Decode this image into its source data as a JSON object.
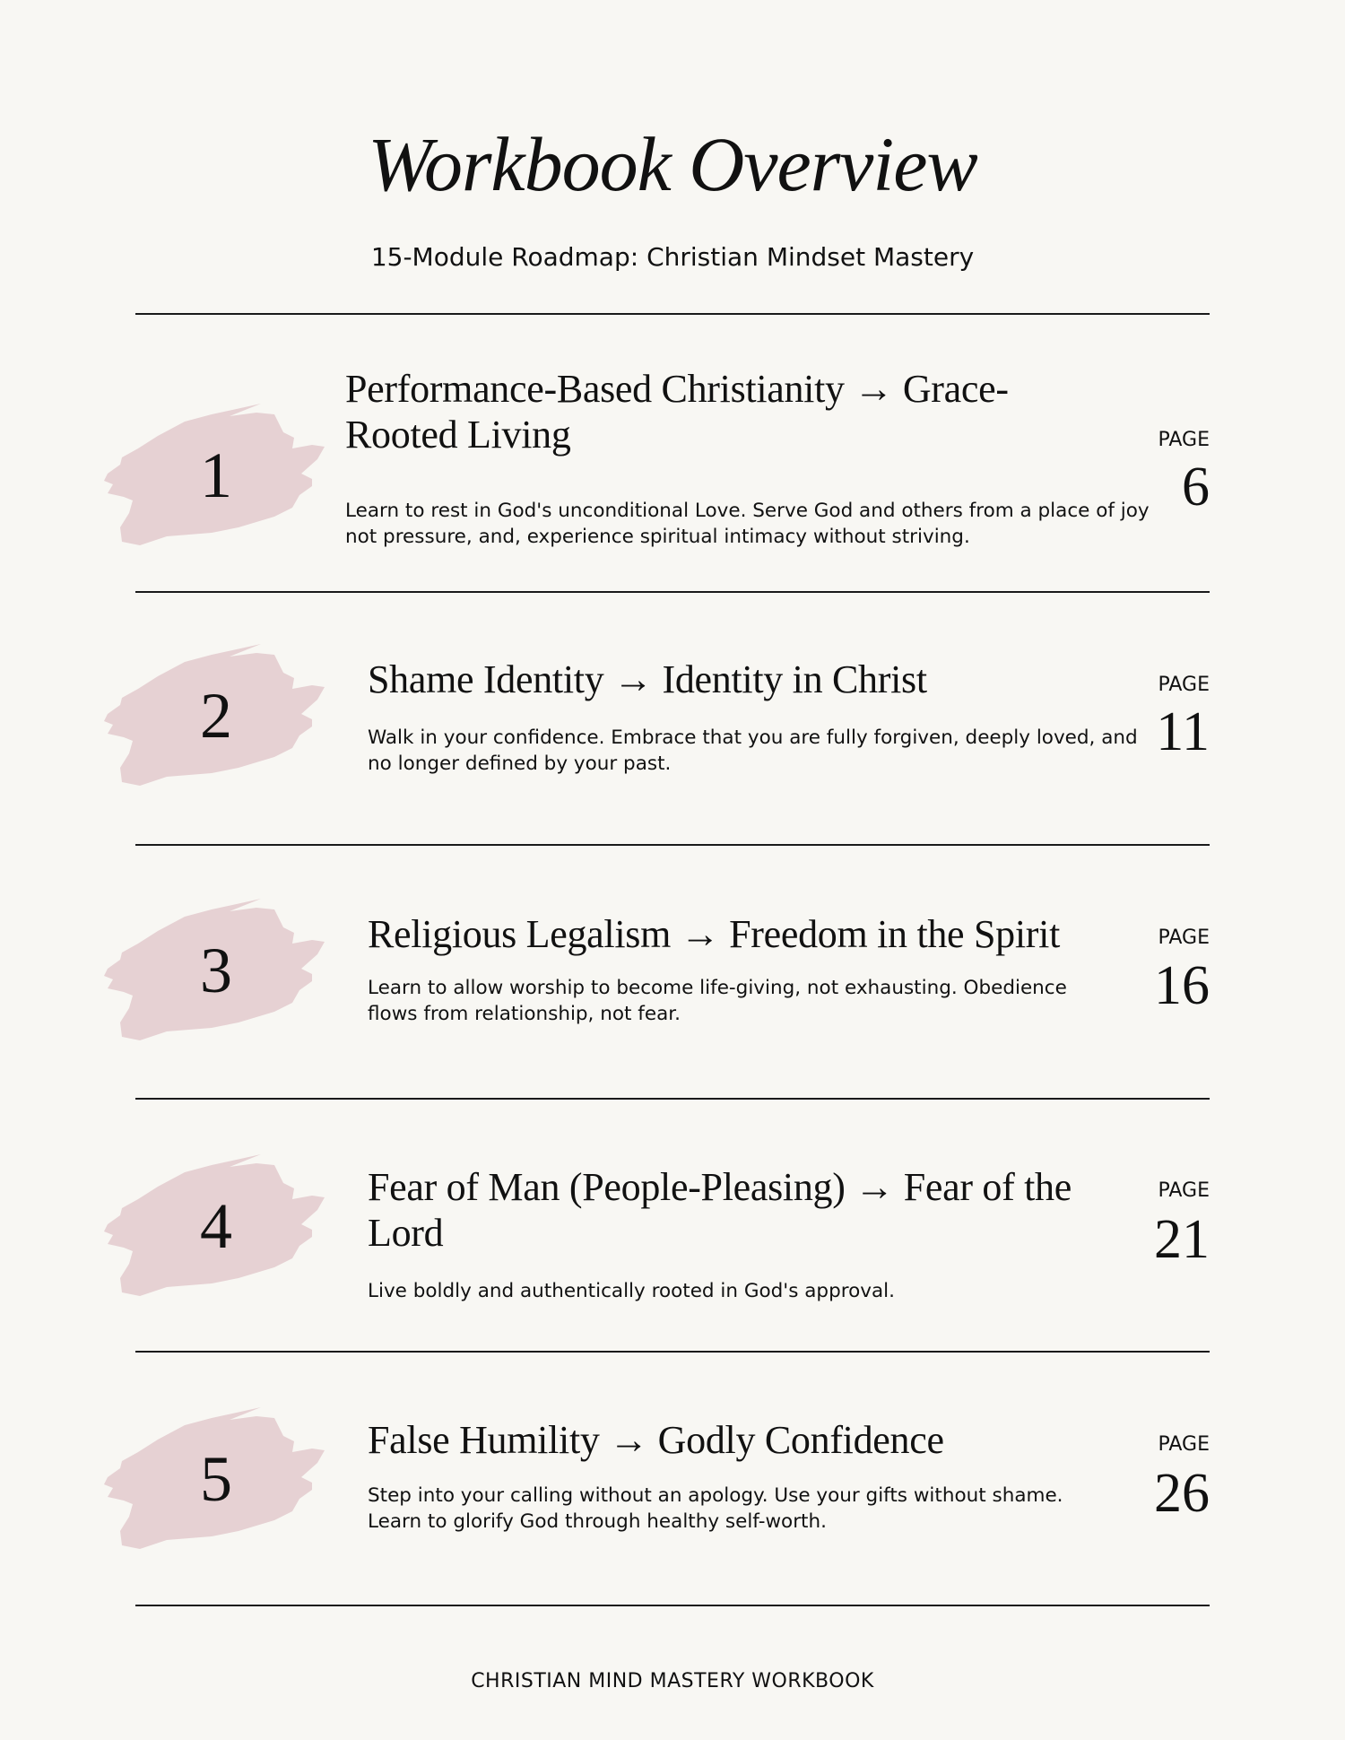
{
  "title": "Workbook Overview",
  "subtitle": "15-Module Roadmap: Christian Mindset Mastery",
  "page_label": "PAGE",
  "brush_color": "#e6d1d3",
  "modules": [
    {
      "number": "1",
      "heading": "Performance-Based Christianity → Grace-Rooted Living",
      "description": "Learn to rest in God's unconditional Love. Serve God and others from a place of joy not pressure, and, experience spiritual intimacy without striving.",
      "page": "6"
    },
    {
      "number": "2",
      "heading": "Shame Identity → Identity in Christ",
      "description": "Walk in your confidence. Embrace that you are fully forgiven, deeply loved, and no longer defined by your past.",
      "page": "11"
    },
    {
      "number": "3",
      "heading": "Religious Legalism → Freedom in the Spirit",
      "description": "Learn to allow worship to become life-giving, not exhausting. Obedience flows from relationship, not fear.",
      "page": "16"
    },
    {
      "number": "4",
      "heading": "Fear of Man (People-Pleasing) → Fear of the Lord",
      "description": "Live boldly and authentically rooted in God's approval.",
      "page": "21"
    },
    {
      "number": "5",
      "heading": "False Humility → Godly Confidence",
      "description": "Step into your calling without an apology. Use your gifts without shame. Learn to glorify God through healthy self-worth.",
      "page": "26"
    }
  ],
  "footer": "CHRISTIAN MIND MASTERY WORKBOOK"
}
